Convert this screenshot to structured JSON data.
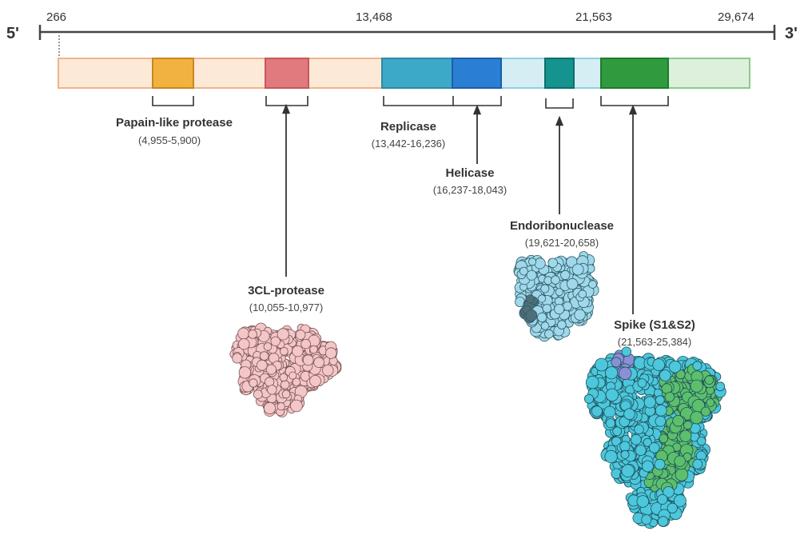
{
  "genome": {
    "five_prime": "5'",
    "three_prime": "3'",
    "coordinates": [
      "266",
      "13,468",
      "21,563",
      "29,674"
    ]
  },
  "proteins": {
    "plpro": {
      "name": "Papain-like protease",
      "range": "(4,955-5,900)",
      "color": "#f2b240"
    },
    "clpro": {
      "name": "3CL-protease",
      "range": "(10,055-10,977)",
      "color": "#e07a7e"
    },
    "replicase": {
      "name": "Replicase",
      "range": "(13,442-16,236)",
      "color": "#3da9c9"
    },
    "helicase": {
      "name": "Helicase",
      "range": "(16,237-18,043)",
      "color": "#2a7fd4"
    },
    "endo": {
      "name": "Endoribonuclease",
      "range": "(19,621-20,658)",
      "color": "#14938f"
    },
    "spike": {
      "name": "Spike (S1&S2)",
      "range": "(21,563-25,384)",
      "color": "#2f9b3e"
    }
  },
  "colors": {
    "orf1a_fill": "#fde9d8",
    "orf1a_stroke": "#f0b48a",
    "orf1b_fill": "#d4eef4",
    "structural_fill": "#dcf0dc",
    "structural_stroke": "#8cc98c",
    "axis": "#444444",
    "clpro_structure": "#f4c6c8",
    "endo_structure": "#9fd8ea",
    "spike_structure_main": "#4cc7dc",
    "spike_structure_green": "#5cbf6c",
    "spike_structure_purple": "#8a8fd6"
  }
}
